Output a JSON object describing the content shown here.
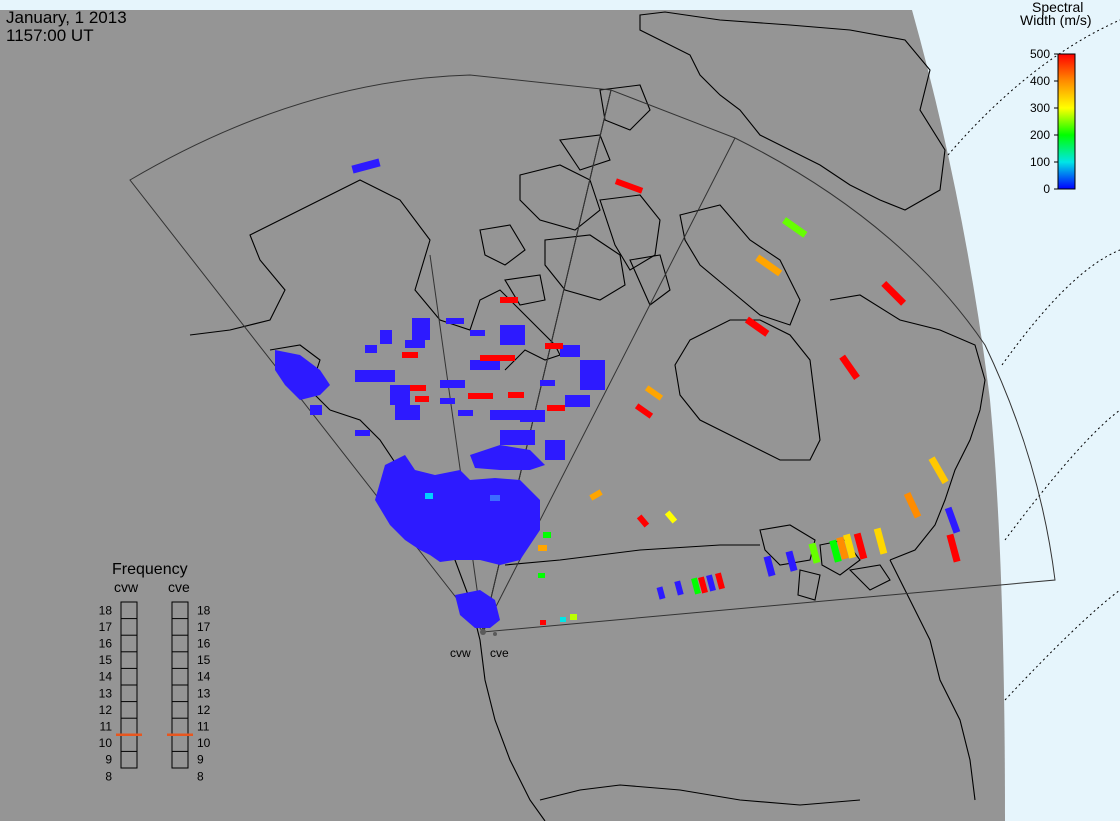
{
  "header": {
    "date": "January, 1 2013",
    "time": "1157:00 UT"
  },
  "colorbar": {
    "title_line1": "Spectral",
    "title_line2": "Width (m/s)",
    "ticks": [
      "500",
      "400",
      "300",
      "200",
      "100",
      "0"
    ],
    "gradient": [
      "#ff0000",
      "#ff8c00",
      "#ffff00",
      "#00ff00",
      "#00e6e6",
      "#0000ff"
    ]
  },
  "radars": {
    "west": "cvw",
    "east": "cve"
  },
  "frequency": {
    "title": "Frequency",
    "cvw_label": "cvw",
    "cve_label": "cve",
    "ticks": [
      "18",
      "17",
      "16",
      "15",
      "14",
      "13",
      "12",
      "11",
      "10",
      "9",
      "8"
    ],
    "cvw_mhz": 10.5,
    "cve_mhz": 10.5
  },
  "colors": {
    "land_ocean": "#959595",
    "daylight": "#e6f5fc",
    "scatter_low": "#2d1aff",
    "coastline": "#000000",
    "freq_marker": "#e8561e"
  }
}
